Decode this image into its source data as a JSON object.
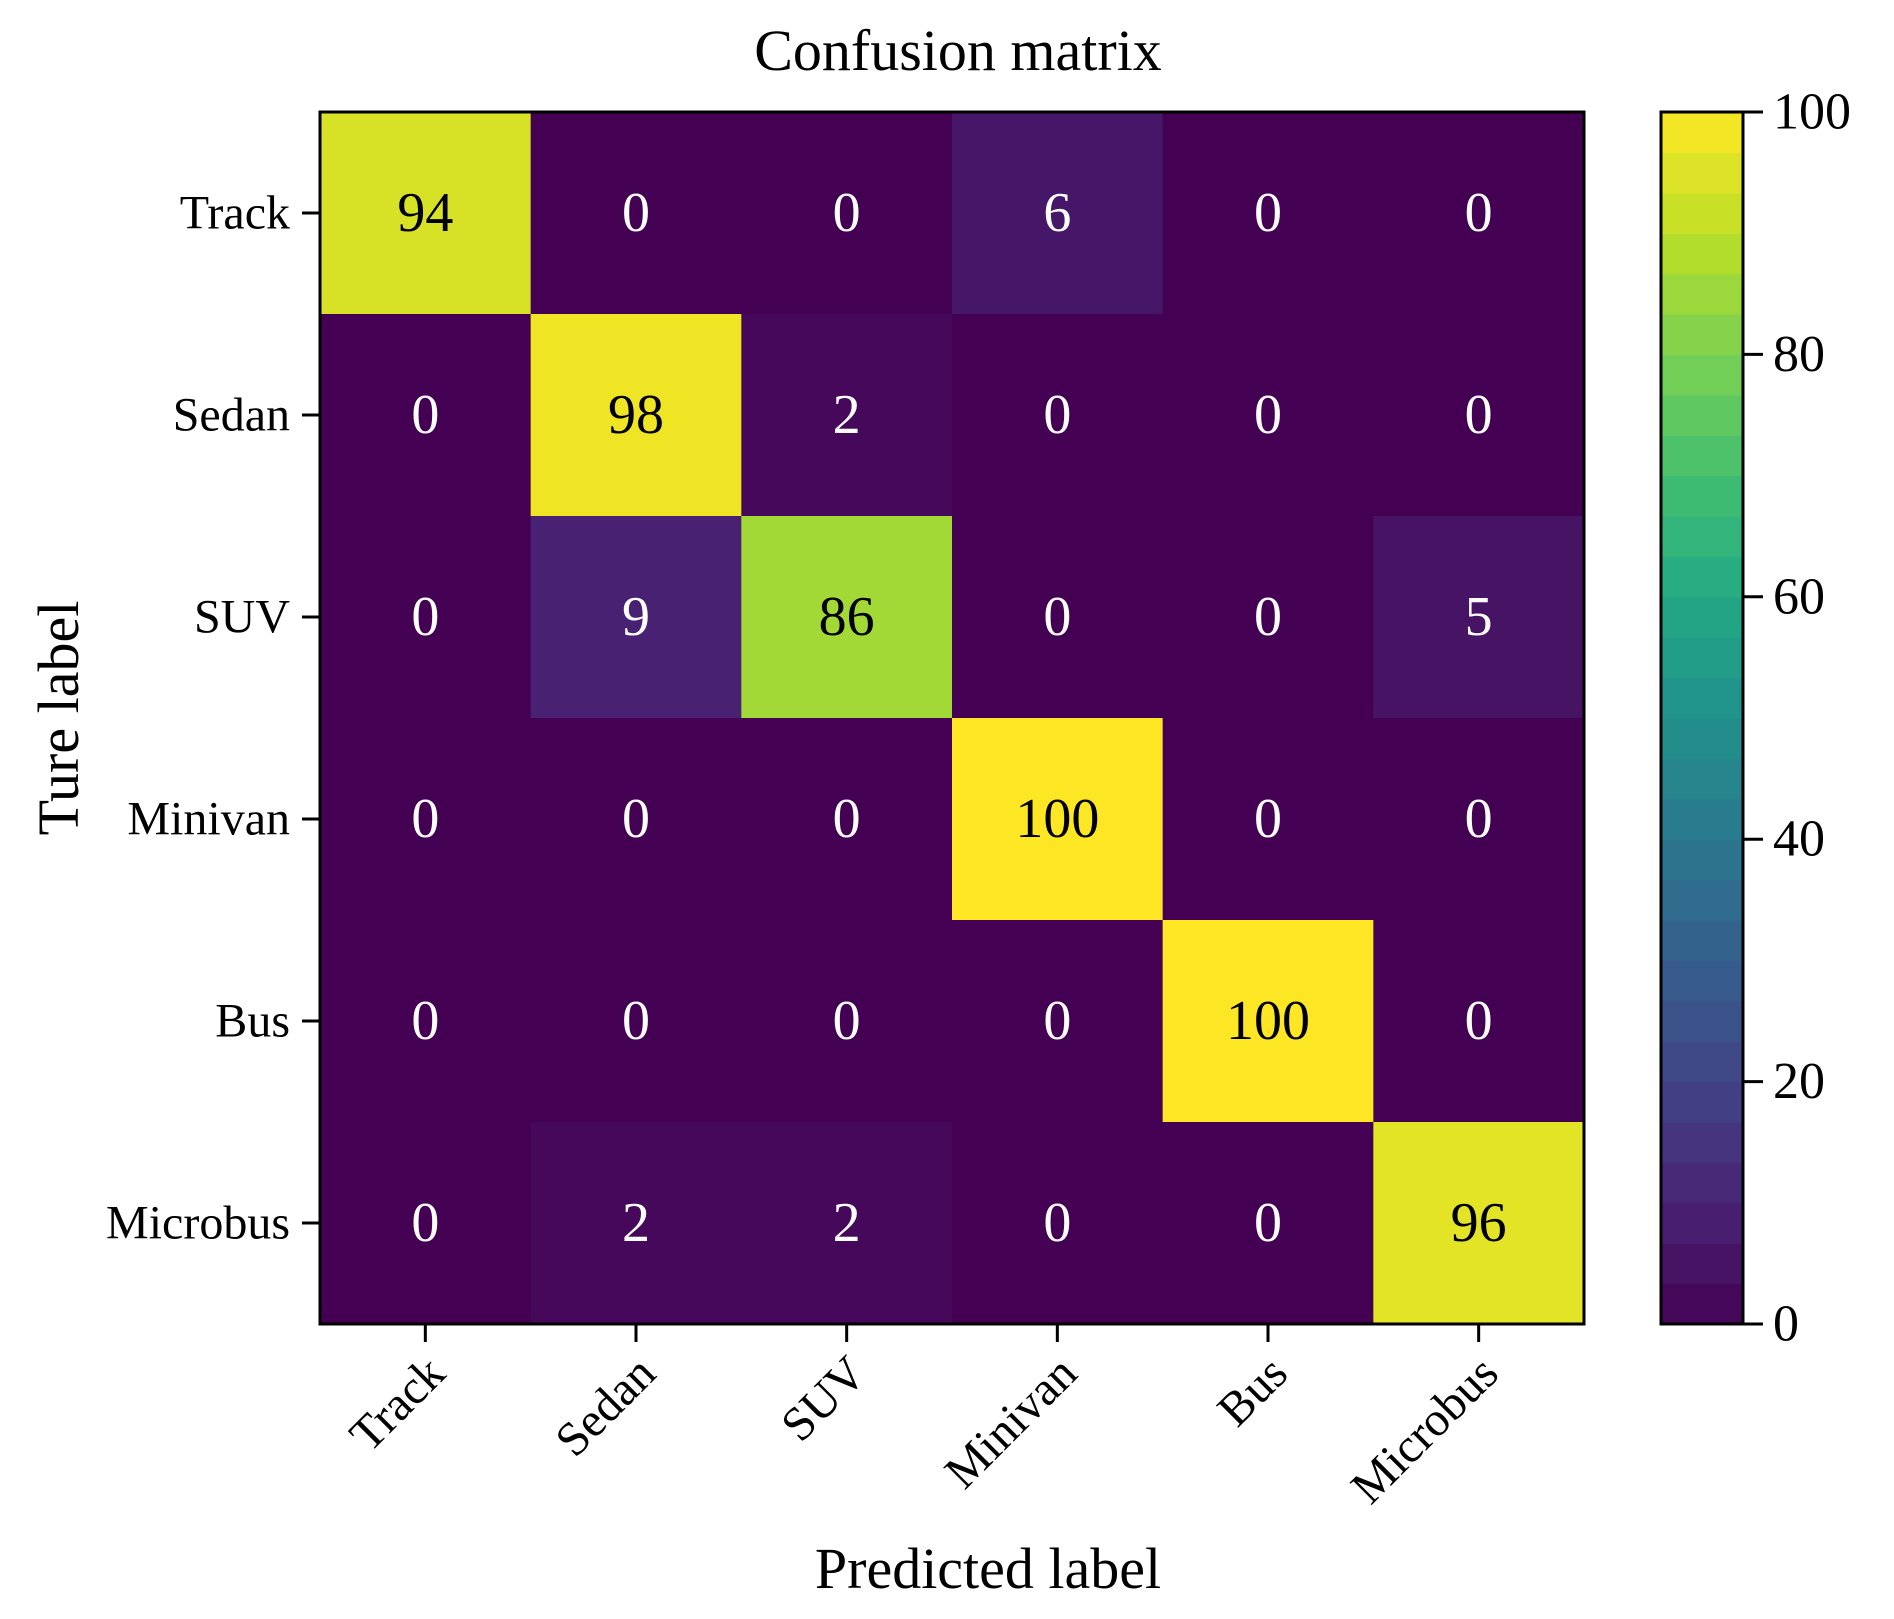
{
  "chart_data": {
    "type": "heatmap",
    "title": "Confusion matrix",
    "xlabel": "Predicted label",
    "ylabel": "Ture label",
    "x_categories": [
      "Track",
      "Sedan",
      "SUV",
      "Minivan",
      "Bus",
      "Microbus"
    ],
    "y_categories": [
      "Track",
      "Sedan",
      "SUV",
      "Minivan",
      "Bus",
      "Microbus"
    ],
    "values": [
      [
        94,
        0,
        0,
        6,
        0,
        0
      ],
      [
        0,
        98,
        2,
        0,
        0,
        0
      ],
      [
        0,
        9,
        86,
        0,
        0,
        5
      ],
      [
        0,
        0,
        0,
        100,
        0,
        0
      ],
      [
        0,
        0,
        0,
        0,
        100,
        0
      ],
      [
        0,
        2,
        2,
        0,
        0,
        96
      ]
    ],
    "colormap": "viridis",
    "colorbar": {
      "range": [
        0,
        100
      ],
      "ticks": [
        0,
        20,
        40,
        60,
        80,
        100
      ]
    },
    "text_colors": {
      "light": "#ffffff",
      "dark": "#000000"
    }
  }
}
